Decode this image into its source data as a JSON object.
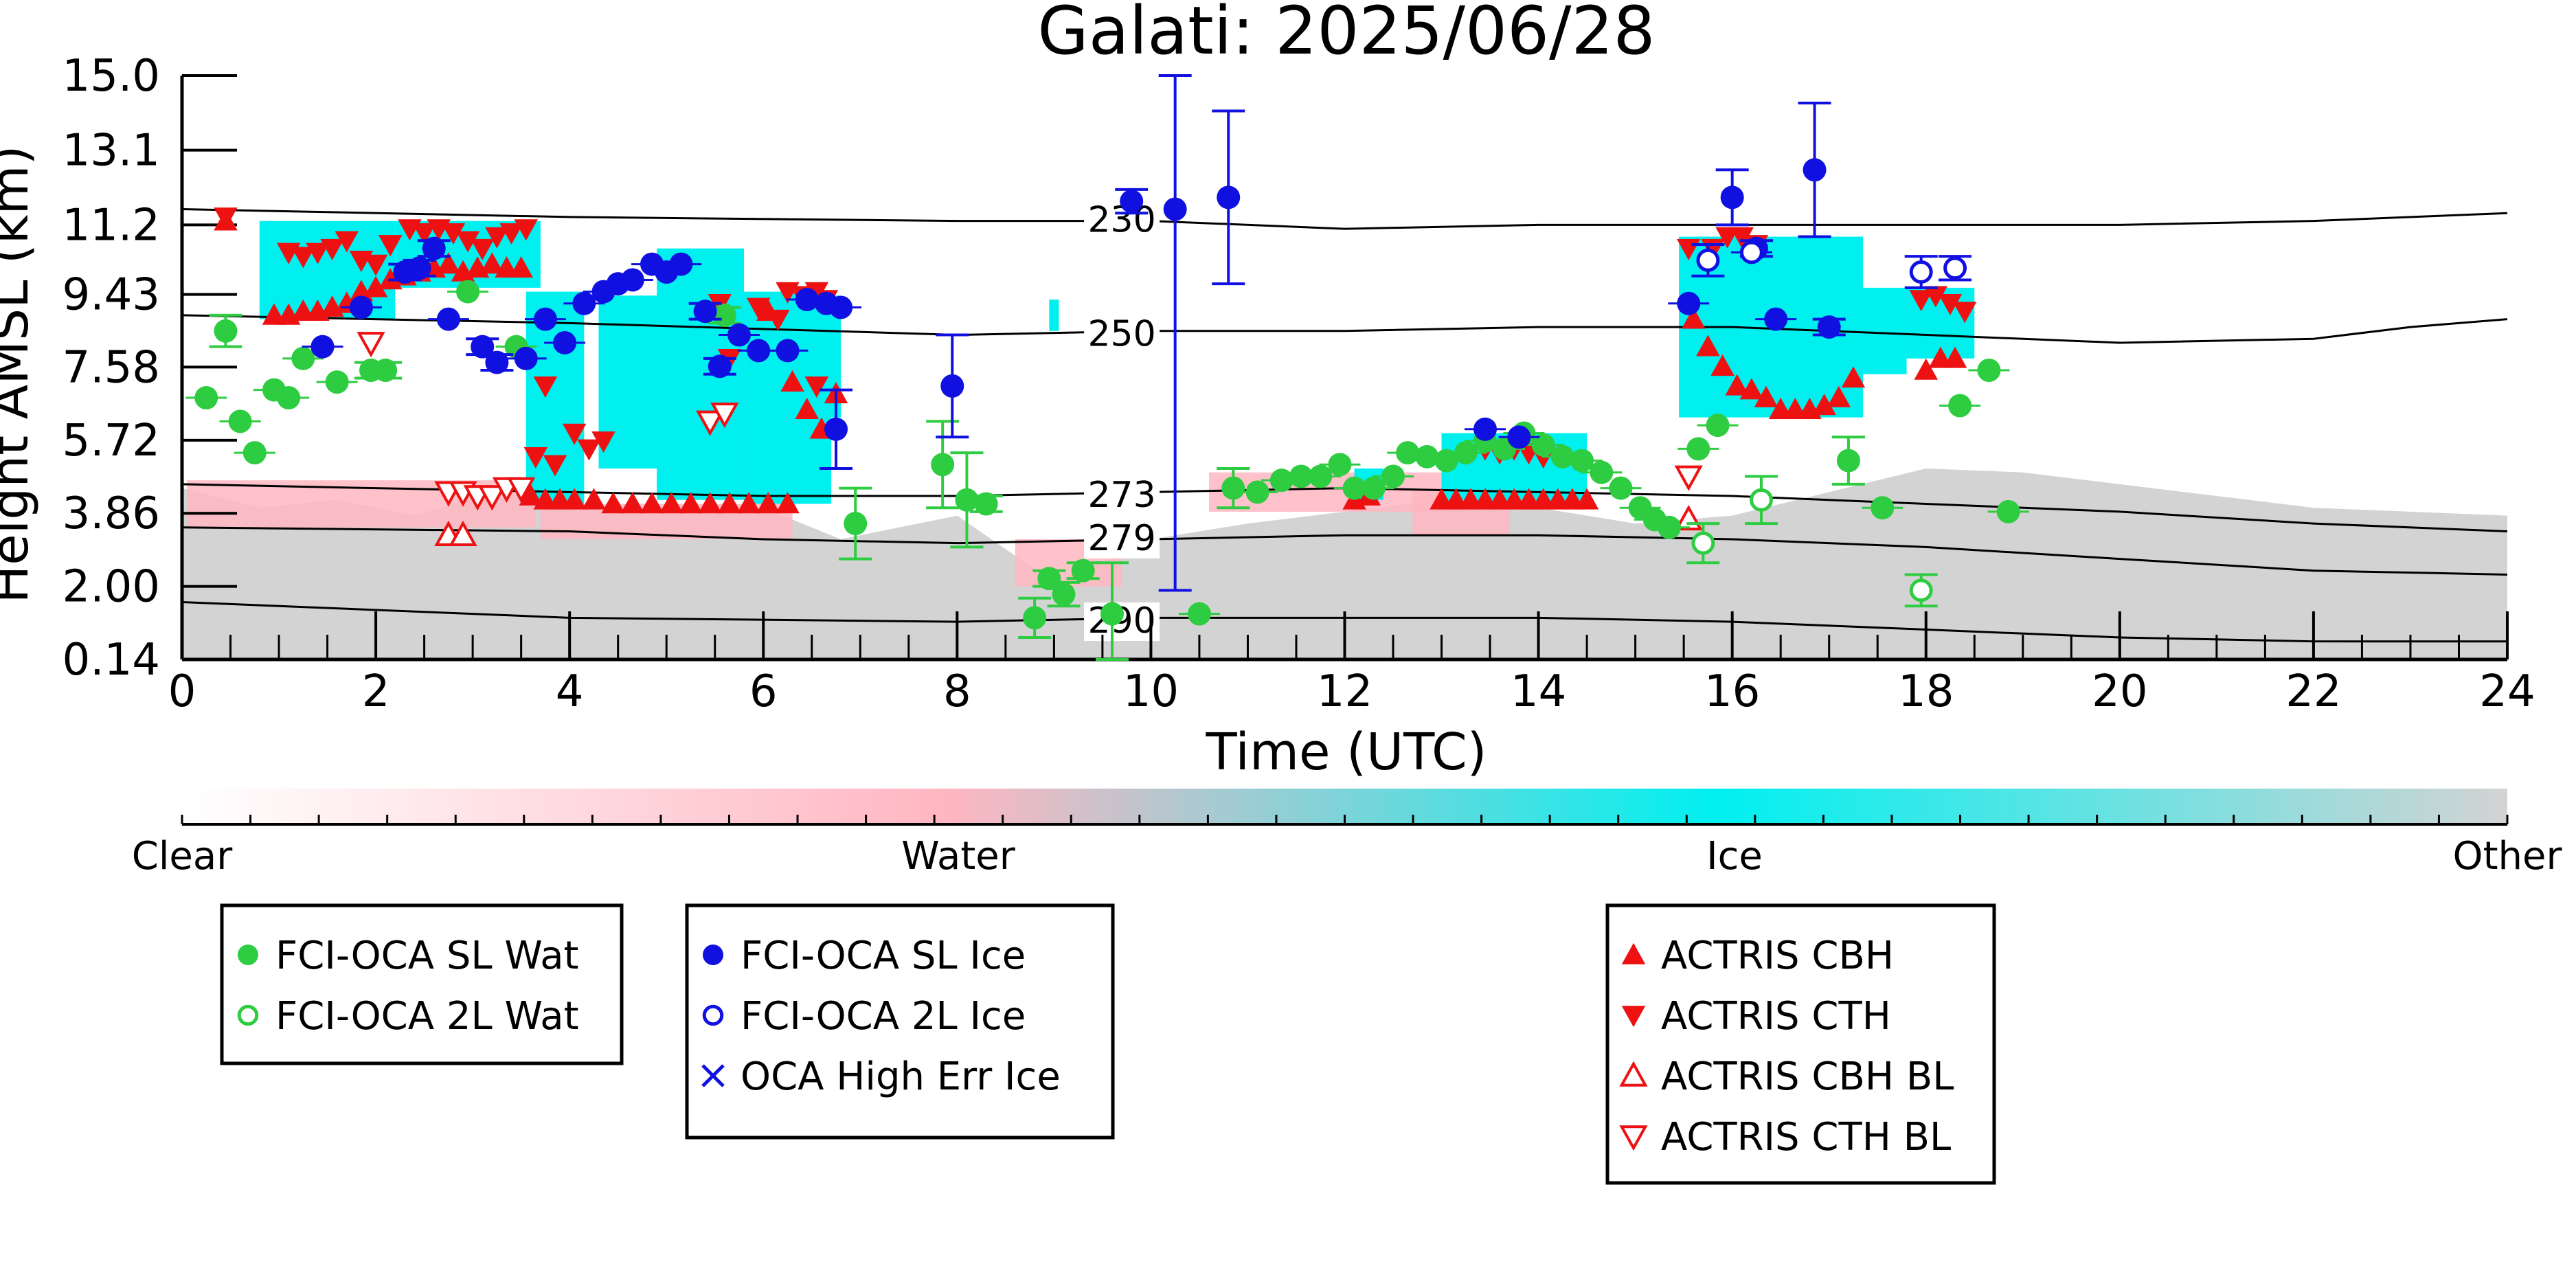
{
  "chart_data": {
    "type": "scatter",
    "title": "Galati: 2025/06/28",
    "xlabel": "Time (UTC)",
    "ylabel": "Height AMSL (km)",
    "xlim": [
      0,
      24
    ],
    "ylim": [
      0.14,
      15.0
    ],
    "x_ticks": [
      "0",
      "2",
      "4",
      "6",
      "8",
      "10",
      "12",
      "14",
      "16",
      "18",
      "20",
      "22",
      "24"
    ],
    "y_ticks": [
      "0.14",
      "2.00",
      "3.86",
      "5.72",
      "7.58",
      "9.43",
      "11.2",
      "13.1",
      "15.0"
    ],
    "grid": false,
    "colorbar": {
      "labels": [
        "Clear",
        "Water",
        "Ice",
        "Other"
      ],
      "colors": {
        "clear": "#ffffff",
        "water": "#ffb6c1",
        "ice": "#00f0f0",
        "other": "#d3d3d3"
      }
    },
    "isotherms": [
      {
        "label": "230",
        "x": [
          0,
          4,
          8,
          10,
          12,
          14,
          16,
          18,
          20,
          22,
          24
        ],
        "y": [
          11.6,
          11.4,
          11.3,
          11.3,
          11.1,
          11.2,
          11.2,
          11.2,
          11.2,
          11.3,
          11.5
        ]
      },
      {
        "label": "250",
        "x": [
          0,
          4,
          8,
          10,
          12,
          14,
          16,
          18,
          20,
          22,
          23,
          24
        ],
        "y": [
          8.9,
          8.7,
          8.4,
          8.5,
          8.5,
          8.6,
          8.6,
          8.4,
          8.2,
          8.3,
          8.6,
          8.8
        ]
      },
      {
        "label": "273",
        "x": [
          0,
          4,
          6,
          8,
          10,
          12,
          14,
          16,
          18,
          20,
          22,
          24
        ],
        "y": [
          4.6,
          4.4,
          4.3,
          4.3,
          4.4,
          4.5,
          4.4,
          4.3,
          4.1,
          3.9,
          3.6,
          3.4
        ]
      },
      {
        "label": "279",
        "x": [
          0,
          4,
          6,
          8,
          10,
          12,
          14,
          16,
          18,
          20,
          22,
          24
        ],
        "y": [
          3.5,
          3.4,
          3.2,
          3.1,
          3.2,
          3.3,
          3.3,
          3.2,
          3.0,
          2.7,
          2.4,
          2.3
        ]
      },
      {
        "label": "290",
        "x": [
          0,
          4,
          8,
          10,
          12,
          14,
          16,
          18,
          20,
          22,
          24
        ],
        "y": [
          1.6,
          1.2,
          1.1,
          1.2,
          1.2,
          1.2,
          1.1,
          0.9,
          0.7,
          0.6,
          0.6
        ]
      }
    ],
    "series": [
      {
        "name": "FCI-OCA SL Wat",
        "marker": "filled-circle",
        "color": "#2ecc40",
        "points": [
          [
            0.25,
            6.8,
            0.1
          ],
          [
            0.45,
            8.5,
            0.4
          ],
          [
            0.6,
            6.2,
            0.1
          ],
          [
            0.75,
            5.4,
            0.1
          ],
          [
            0.95,
            7.0,
            0.1
          ],
          [
            1.1,
            6.8,
            0.1
          ],
          [
            1.25,
            7.8,
            0.1
          ],
          [
            1.6,
            7.2,
            0.1
          ],
          [
            1.95,
            7.5,
            0.2
          ],
          [
            2.1,
            7.5,
            0.2
          ],
          [
            2.95,
            9.5,
            0.1
          ],
          [
            3.45,
            8.1,
            0.1
          ],
          [
            5.6,
            8.9,
            0.2
          ],
          [
            6.95,
            3.6,
            0.9
          ],
          [
            7.85,
            5.1,
            1.1
          ],
          [
            8.1,
            4.2,
            1.2
          ],
          [
            8.3,
            4.1,
            0.2
          ],
          [
            8.8,
            1.2,
            0.5
          ],
          [
            8.95,
            2.2,
            0.2
          ],
          [
            9.1,
            1.8,
            0.3
          ],
          [
            9.3,
            2.4,
            0.2
          ],
          [
            9.6,
            1.3,
            1.3
          ],
          [
            10.5,
            1.3,
            0.1
          ],
          [
            10.85,
            4.5,
            0.5
          ],
          [
            11.1,
            4.4,
            0.1
          ],
          [
            11.35,
            4.7,
            0.1
          ],
          [
            11.55,
            4.8,
            0.1
          ],
          [
            11.75,
            4.8,
            0.1
          ],
          [
            11.95,
            5.1,
            0.1
          ],
          [
            12.1,
            4.5,
            0.1
          ],
          [
            12.3,
            4.5,
            0.1
          ],
          [
            12.5,
            4.8,
            0.1
          ],
          [
            12.65,
            5.4,
            0.1
          ],
          [
            12.85,
            5.3,
            0.1
          ],
          [
            13.05,
            5.2,
            0.1
          ],
          [
            13.25,
            5.4,
            0.1
          ],
          [
            13.45,
            5.7,
            0.1
          ],
          [
            13.65,
            5.5,
            0.1
          ],
          [
            13.85,
            5.9,
            0.1
          ],
          [
            14.05,
            5.6,
            0.1
          ],
          [
            14.25,
            5.3,
            0.1
          ],
          [
            14.45,
            5.2,
            0.1
          ],
          [
            14.65,
            4.9,
            0.1
          ],
          [
            14.85,
            4.5,
            0.1
          ],
          [
            15.05,
            4.0,
            0.1
          ],
          [
            15.2,
            3.7,
            0.1
          ],
          [
            15.35,
            3.5,
            0.1
          ],
          [
            15.65,
            5.5,
            0.1
          ],
          [
            15.85,
            6.1,
            0.1
          ],
          [
            17.2,
            5.2,
            0.6
          ],
          [
            17.55,
            4.0,
            0.1
          ],
          [
            18.35,
            6.6,
            0.1
          ],
          [
            18.65,
            7.5,
            0.1
          ],
          [
            18.85,
            3.9,
            0.1
          ]
        ]
      },
      {
        "name": "FCI-OCA 2L Wat",
        "marker": "open-circle",
        "color": "#2ecc40",
        "points": [
          [
            15.7,
            3.1,
            0.5
          ],
          [
            16.3,
            4.2,
            0.6
          ],
          [
            17.95,
            1.9,
            0.4
          ]
        ]
      },
      {
        "name": "FCI-OCA SL Ice",
        "marker": "filled-circle",
        "color": "#1010e0",
        "points": [
          [
            1.45,
            8.1,
            0.1
          ],
          [
            1.85,
            9.1,
            0.1
          ],
          [
            2.3,
            10.0,
            0.2
          ],
          [
            2.45,
            10.1,
            0.2
          ],
          [
            2.6,
            10.6,
            0.2
          ],
          [
            2.75,
            8.8,
            0.1
          ],
          [
            3.1,
            8.1,
            0.2
          ],
          [
            3.25,
            7.7,
            0.2
          ],
          [
            3.55,
            7.8,
            0.1
          ],
          [
            3.75,
            8.8,
            0.1
          ],
          [
            3.95,
            8.2,
            0.1
          ],
          [
            4.15,
            9.2,
            0.1
          ],
          [
            4.35,
            9.5,
            0.1
          ],
          [
            4.5,
            9.7,
            0.1
          ],
          [
            4.65,
            9.8,
            0.1
          ],
          [
            4.85,
            10.2,
            0.1
          ],
          [
            5.0,
            10.0,
            0.1
          ],
          [
            5.15,
            10.2,
            0.1
          ],
          [
            5.4,
            9.0,
            0.2
          ],
          [
            5.55,
            7.6,
            0.2
          ],
          [
            5.75,
            8.4,
            0.1
          ],
          [
            5.95,
            8.0,
            0.1
          ],
          [
            6.25,
            8.0,
            0.1
          ],
          [
            6.45,
            9.3,
            0.1
          ],
          [
            6.65,
            9.2,
            0.1
          ],
          [
            6.8,
            9.1,
            0.1
          ],
          [
            6.75,
            6.0,
            1.0
          ],
          [
            7.95,
            7.1,
            1.3
          ],
          [
            9.8,
            11.8,
            0.3
          ],
          [
            10.25,
            11.6,
            9.7
          ],
          [
            10.8,
            11.9,
            2.2
          ],
          [
            13.45,
            6.0,
            0.1
          ],
          [
            13.8,
            5.8,
            0.1
          ],
          [
            15.55,
            9.2,
            0.1
          ],
          [
            16.0,
            11.9,
            0.7
          ],
          [
            16.25,
            10.6,
            0.2
          ],
          [
            16.45,
            8.8,
            0.1
          ],
          [
            16.85,
            12.6,
            1.7
          ],
          [
            17.0,
            8.6,
            0.2
          ]
        ]
      },
      {
        "name": "FCI-OCA 2L Ice",
        "marker": "open-circle",
        "color": "#1010e0",
        "points": [
          [
            15.75,
            10.3,
            0.4
          ],
          [
            16.2,
            10.5,
            0.1
          ],
          [
            17.95,
            10.0,
            0.4
          ],
          [
            18.3,
            10.1,
            0.3
          ]
        ]
      },
      {
        "name": "OCA High Err Ice",
        "marker": "x",
        "color": "#1010e0",
        "points": []
      },
      {
        "name": "ACTRIS CBH",
        "marker": "triangle-up",
        "color": "#ee1111",
        "points": [
          [
            0.45,
            11.3
          ],
          [
            0.95,
            8.9
          ],
          [
            1.1,
            8.9
          ],
          [
            1.25,
            9.0
          ],
          [
            1.4,
            9.0
          ],
          [
            1.55,
            9.1
          ],
          [
            1.7,
            9.2
          ],
          [
            1.85,
            9.5
          ],
          [
            2.0,
            9.6
          ],
          [
            2.15,
            9.8
          ],
          [
            2.3,
            9.9
          ],
          [
            2.45,
            10.0
          ],
          [
            2.6,
            10.1
          ],
          [
            2.75,
            10.2
          ],
          [
            2.9,
            10.0
          ],
          [
            3.05,
            10.1
          ],
          [
            3.2,
            10.2
          ],
          [
            3.35,
            10.1
          ],
          [
            3.5,
            10.1
          ],
          [
            3.6,
            4.3
          ],
          [
            3.75,
            4.2
          ],
          [
            3.9,
            4.2
          ],
          [
            4.05,
            4.2
          ],
          [
            4.25,
            4.2
          ],
          [
            4.45,
            4.1
          ],
          [
            4.65,
            4.1
          ],
          [
            4.85,
            4.1
          ],
          [
            5.05,
            4.1
          ],
          [
            5.25,
            4.1
          ],
          [
            5.45,
            4.1
          ],
          [
            5.65,
            4.1
          ],
          [
            5.85,
            4.1
          ],
          [
            6.05,
            4.1
          ],
          [
            6.25,
            4.1
          ],
          [
            6.05,
            9.0
          ],
          [
            6.3,
            7.2
          ],
          [
            6.45,
            6.5
          ],
          [
            6.6,
            6.0
          ],
          [
            6.75,
            6.9
          ],
          [
            12.1,
            4.2
          ],
          [
            12.25,
            4.3
          ],
          [
            13.0,
            4.2
          ],
          [
            13.15,
            4.2
          ],
          [
            13.3,
            4.2
          ],
          [
            13.45,
            4.2
          ],
          [
            13.6,
            4.2
          ],
          [
            13.75,
            4.2
          ],
          [
            13.9,
            4.2
          ],
          [
            14.05,
            4.2
          ],
          [
            14.2,
            4.2
          ],
          [
            14.35,
            4.2
          ],
          [
            14.5,
            4.2
          ],
          [
            15.6,
            8.8
          ],
          [
            15.75,
            8.1
          ],
          [
            15.9,
            7.6
          ],
          [
            16.05,
            7.1
          ],
          [
            16.2,
            7.0
          ],
          [
            16.35,
            6.8
          ],
          [
            16.5,
            6.5
          ],
          [
            16.65,
            6.5
          ],
          [
            16.8,
            6.5
          ],
          [
            16.95,
            6.6
          ],
          [
            17.1,
            6.8
          ],
          [
            17.25,
            7.3
          ],
          [
            18.0,
            7.5
          ],
          [
            18.15,
            7.8
          ],
          [
            18.3,
            7.8
          ]
        ]
      },
      {
        "name": "ACTRIS CTH",
        "marker": "triangle-down",
        "color": "#ee1111",
        "points": [
          [
            0.45,
            11.4
          ],
          [
            1.1,
            10.5
          ],
          [
            1.25,
            10.4
          ],
          [
            1.4,
            10.5
          ],
          [
            1.55,
            10.6
          ],
          [
            1.7,
            10.8
          ],
          [
            1.85,
            10.3
          ],
          [
            2.0,
            10.2
          ],
          [
            2.15,
            10.7
          ],
          [
            2.35,
            11.1
          ],
          [
            2.5,
            11.0
          ],
          [
            2.65,
            11.1
          ],
          [
            2.8,
            11.0
          ],
          [
            2.95,
            10.8
          ],
          [
            3.1,
            10.6
          ],
          [
            3.25,
            10.9
          ],
          [
            3.4,
            11.0
          ],
          [
            3.55,
            11.1
          ],
          [
            3.75,
            7.1
          ],
          [
            3.65,
            5.3
          ],
          [
            3.85,
            5.1
          ],
          [
            4.05,
            5.9
          ],
          [
            4.2,
            5.5
          ],
          [
            4.35,
            5.7
          ],
          [
            5.55,
            9.2
          ],
          [
            5.65,
            7.8
          ],
          [
            5.95,
            9.1
          ],
          [
            6.15,
            8.8
          ],
          [
            6.25,
            9.5
          ],
          [
            6.4,
            9.4
          ],
          [
            6.55,
            9.5
          ],
          [
            6.65,
            9.3
          ],
          [
            6.55,
            7.1
          ],
          [
            13.45,
            5.5
          ],
          [
            13.6,
            5.4
          ],
          [
            13.75,
            5.5
          ],
          [
            13.9,
            5.4
          ],
          [
            14.05,
            5.3
          ],
          [
            15.55,
            10.6
          ],
          [
            15.8,
            10.6
          ],
          [
            15.95,
            10.9
          ],
          [
            16.1,
            10.9
          ],
          [
            16.25,
            10.7
          ],
          [
            17.95,
            9.3
          ],
          [
            18.1,
            9.4
          ],
          [
            18.25,
            9.2
          ],
          [
            18.4,
            9.0
          ]
        ]
      },
      {
        "name": "ACTRIS CBH BL",
        "marker": "open-triangle-up",
        "color": "#ee1111",
        "points": [
          [
            2.75,
            3.3
          ],
          [
            2.9,
            3.3
          ],
          [
            15.55,
            3.7
          ]
        ]
      },
      {
        "name": "ACTRIS CTH BL",
        "marker": "open-triangle-down",
        "color": "#ee1111",
        "points": [
          [
            1.95,
            8.2
          ],
          [
            2.75,
            4.4
          ],
          [
            2.9,
            4.4
          ],
          [
            3.05,
            4.3
          ],
          [
            3.2,
            4.3
          ],
          [
            3.35,
            4.5
          ],
          [
            3.5,
            4.5
          ],
          [
            5.45,
            6.2
          ],
          [
            5.6,
            6.4
          ],
          [
            15.55,
            4.8
          ]
        ]
      }
    ]
  }
}
